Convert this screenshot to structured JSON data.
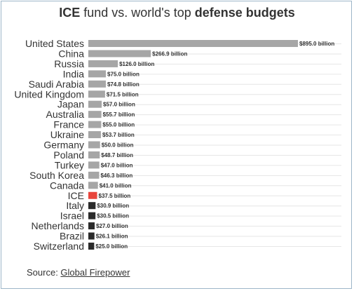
{
  "title": {
    "part1": "ICE",
    "part2": " fund vs. world's top ",
    "part3": "defense budgets"
  },
  "source": {
    "label": "Source: ",
    "link_text": "Global Firepower"
  },
  "colors": {
    "default": "#a6a6a6",
    "highlight": "#e8453c",
    "below": "#2b2b2b",
    "grid": "#e6e6e6"
  },
  "chart_data": {
    "type": "bar",
    "orientation": "horizontal",
    "title": "ICE fund vs. world's top defense budgets",
    "unit": "billion",
    "xlim": [
      0,
      895
    ],
    "grid": true,
    "categories": [
      "United States",
      "China",
      "Russia",
      "India",
      "Saudi Arabia",
      "United Kingdom",
      "Japan",
      "Australia",
      "France",
      "Ukraine",
      "Germany",
      "Poland",
      "Turkey",
      "South Korea",
      "Canada",
      "ICE",
      "Italy",
      "Israel",
      "Netherlands",
      "Brazil",
      "Switzerland"
    ],
    "values": [
      895.0,
      266.9,
      126.0,
      75.0,
      74.8,
      71.5,
      57.0,
      55.7,
      55.0,
      53.7,
      50.0,
      48.7,
      47.0,
      46.3,
      41.0,
      37.5,
      30.9,
      30.5,
      27.0,
      26.1,
      25.0
    ],
    "labels": [
      "$895.0 billion",
      "$266.9 billion",
      "$126.0 billion",
      "$75.0 billion",
      "$74.8 billion",
      "$71.5 billion",
      "$57.0 billion",
      "$55.7 billion",
      "$55.0 billion",
      "$53.7 billion",
      "$50.0 billion",
      "$48.7 billion",
      "$47.0 billion",
      "$46.3 billion",
      "$41.0 billion",
      "$37.5 billion",
      "$30.9 billion",
      "$30.5 billion",
      "$27.0 billion",
      "$26.1 billion",
      "$25.0 billion"
    ],
    "bar_groups": [
      "default",
      "default",
      "default",
      "default",
      "default",
      "default",
      "default",
      "default",
      "default",
      "default",
      "default",
      "default",
      "default",
      "default",
      "default",
      "highlight",
      "below",
      "below",
      "below",
      "below",
      "below"
    ]
  }
}
